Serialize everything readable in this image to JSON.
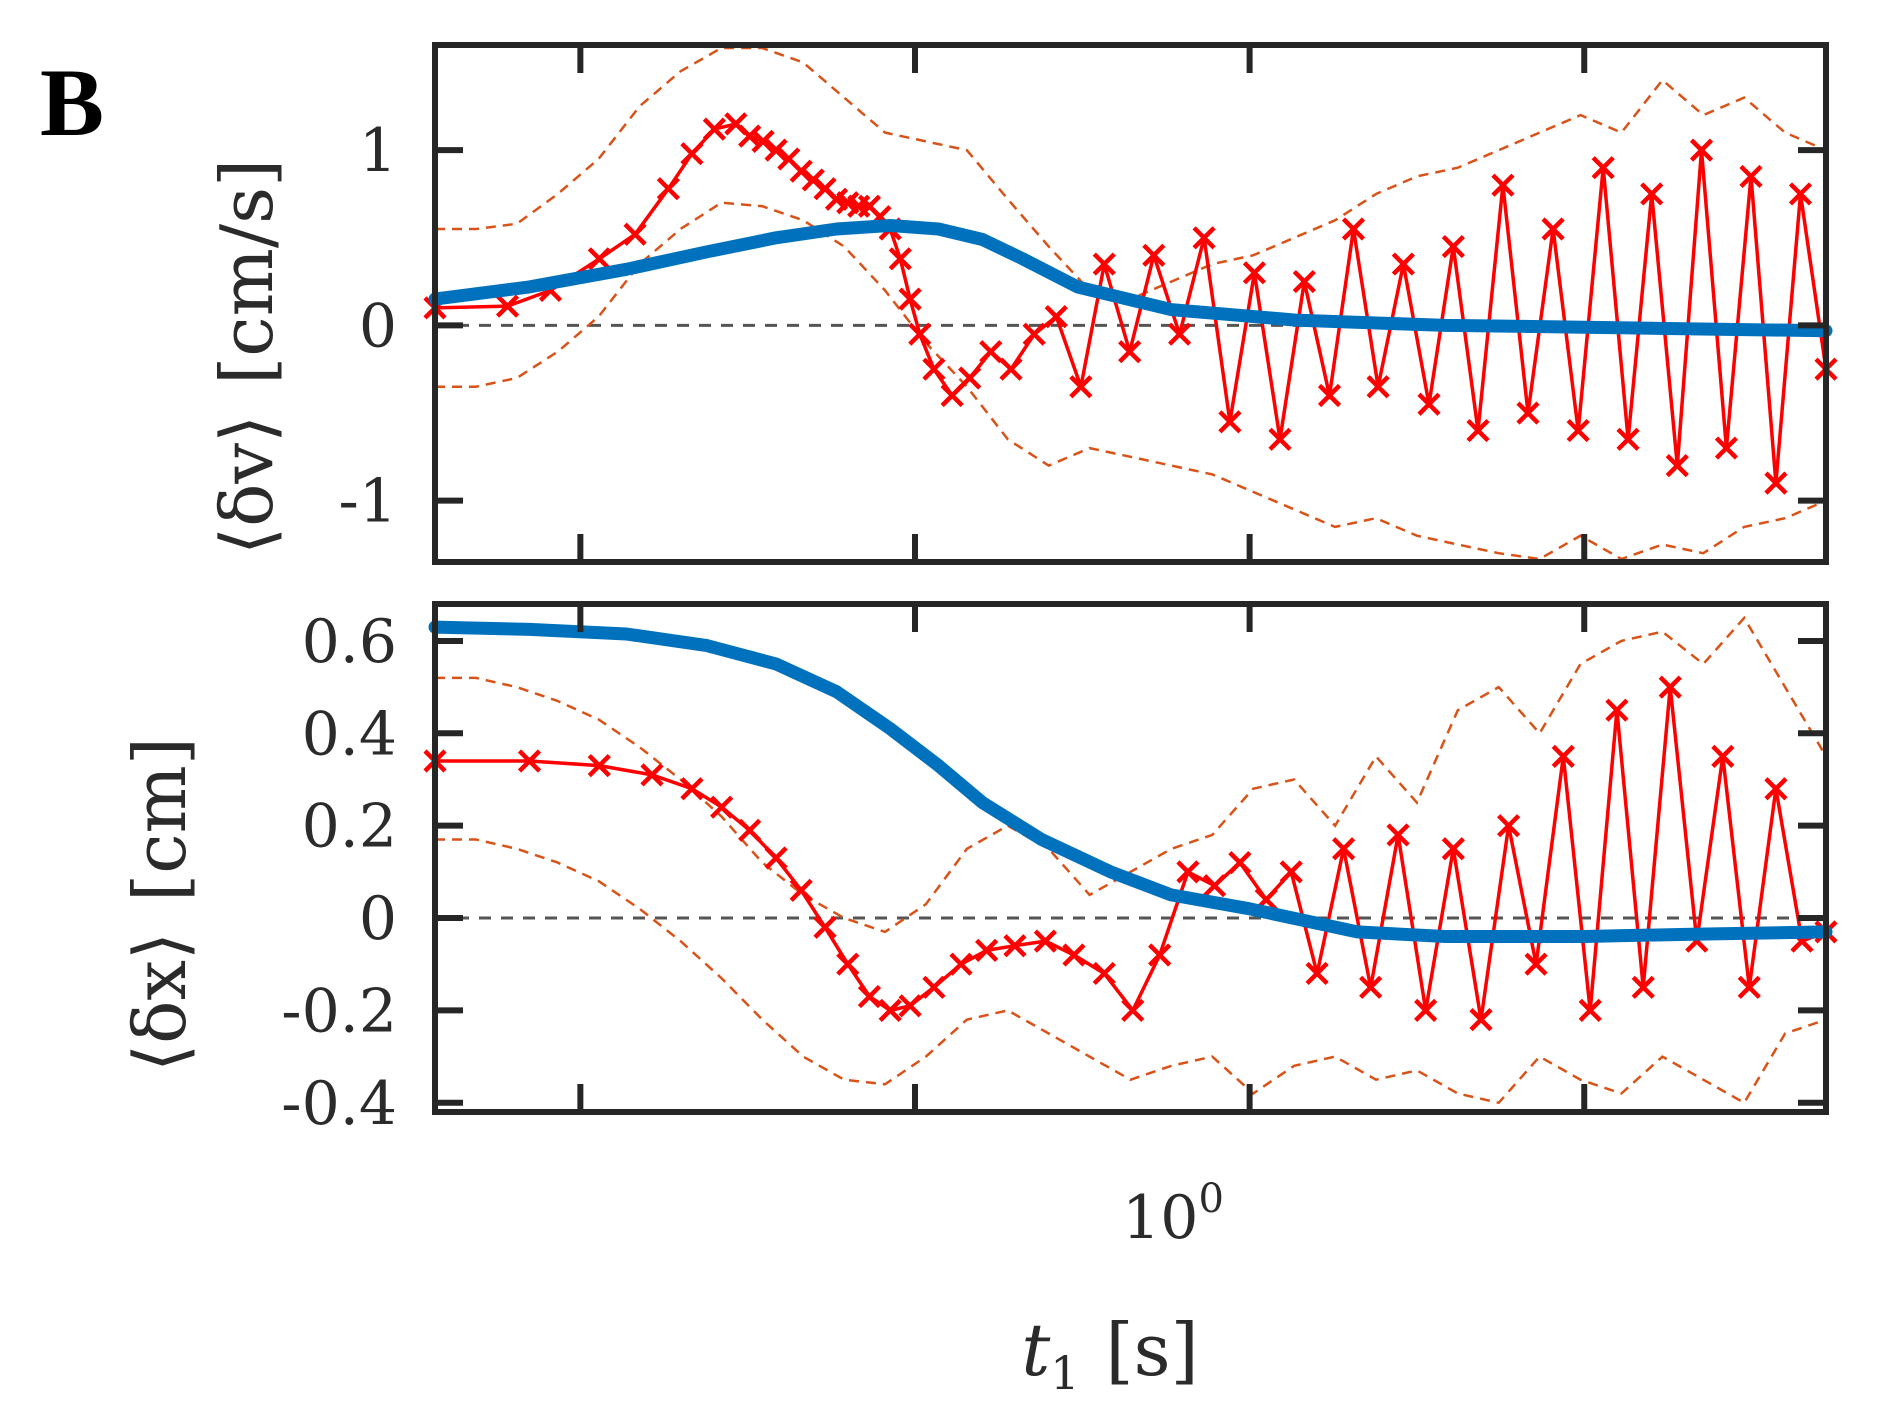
{
  "figure": {
    "panel_label": "B",
    "colors": {
      "model": "#0072BD",
      "data": "#ff0000",
      "ci": "#D95319",
      "zero": "#555555",
      "axes": "#262626"
    }
  },
  "chart_data": [
    {
      "type": "line",
      "panel": "top",
      "ylabel_main": "⟨δv⟩",
      "ylabel_unit": "[cm/s]",
      "xscale": "log",
      "xlim": [
        0.37,
        6.6
      ],
      "ylim": [
        -1.35,
        1.6
      ],
      "yticks": [
        -1,
        0,
        1
      ],
      "ytick_labels": [
        "-1",
        "0",
        "1"
      ],
      "xticks": [
        0.5,
        1,
        2,
        4
      ],
      "zero_line": 0,
      "model": {
        "x": [
          0.37,
          0.45,
          0.55,
          0.65,
          0.75,
          0.85,
          0.95,
          1.05,
          1.15,
          1.25,
          1.4,
          1.7,
          2.2,
          3.0,
          4.0,
          5.0,
          6.6
        ],
        "y": [
          0.15,
          0.22,
          0.32,
          0.42,
          0.5,
          0.55,
          0.57,
          0.55,
          0.49,
          0.38,
          0.22,
          0.09,
          0.03,
          0.0,
          -0.01,
          -0.02,
          -0.03
        ]
      },
      "data_x": [
        0.37,
        0.43,
        0.47,
        0.52,
        0.56,
        0.6,
        0.63,
        0.66,
        0.69,
        0.71,
        0.73,
        0.75,
        0.77,
        0.79,
        0.81,
        0.83,
        0.85,
        0.87,
        0.89,
        0.91,
        0.93,
        0.95,
        0.97,
        0.99,
        1.01,
        1.04,
        1.08,
        1.12,
        1.17,
        1.22,
        1.28,
        1.34,
        1.41,
        1.48,
        1.56,
        1.64,
        1.73,
        1.82,
        1.92,
        2.02,
        2.13,
        2.24,
        2.36,
        2.48,
        2.61,
        2.75,
        2.9,
        3.05,
        3.21,
        3.38,
        3.56,
        3.75,
        3.95,
        4.16,
        4.38,
        4.6,
        4.85,
        5.1,
        5.37,
        5.65,
        5.95,
        6.26,
        6.6
      ],
      "data_y": [
        0.1,
        0.11,
        0.2,
        0.38,
        0.52,
        0.78,
        0.98,
        1.12,
        1.15,
        1.08,
        1.05,
        1.0,
        0.95,
        0.88,
        0.83,
        0.78,
        0.72,
        0.7,
        0.68,
        0.68,
        0.62,
        0.55,
        0.38,
        0.15,
        -0.05,
        -0.25,
        -0.4,
        -0.3,
        -0.15,
        -0.25,
        -0.05,
        0.05,
        -0.35,
        0.35,
        -0.15,
        0.4,
        -0.05,
        0.5,
        -0.55,
        0.3,
        -0.65,
        0.25,
        -0.4,
        0.55,
        -0.35,
        0.35,
        -0.45,
        0.45,
        -0.6,
        0.8,
        -0.5,
        0.55,
        -0.6,
        0.9,
        -0.65,
        0.75,
        -0.8,
        1.0,
        -0.7,
        0.85,
        -0.9,
        0.75,
        -0.25
      ],
      "ci_upper": [
        0.55,
        0.55,
        0.58,
        0.75,
        0.95,
        1.25,
        1.45,
        1.6,
        1.62,
        1.5,
        1.3,
        1.1,
        1.05,
        1.0,
        0.72,
        0.45,
        0.2,
        0.15,
        0.25,
        0.35,
        0.4,
        0.5,
        0.6,
        0.75,
        0.85,
        0.9,
        1.0,
        1.1,
        1.2,
        1.1,
        1.4,
        1.2,
        1.3,
        1.1,
        1.0
      ],
      "ci_lower": [
        -0.35,
        -0.35,
        -0.3,
        -0.15,
        0.05,
        0.35,
        0.55,
        0.7,
        0.68,
        0.6,
        0.45,
        0.2,
        -0.1,
        -0.35,
        -0.65,
        -0.8,
        -0.7,
        -0.75,
        -0.8,
        -0.85,
        -0.95,
        -1.05,
        -1.15,
        -1.1,
        -1.2,
        -1.25,
        -1.3,
        -1.35,
        -1.2,
        -1.4,
        -1.25,
        -1.3,
        -1.15,
        -1.1,
        -1.0
      ]
    },
    {
      "type": "line",
      "panel": "bottom",
      "ylabel_main": "⟨δx⟩",
      "ylabel_unit": "[cm]",
      "xlabel_main": "t",
      "xlabel_sub": "1",
      "xlabel_unit": "[s]",
      "xscale": "log",
      "xlim": [
        0.37,
        6.6
      ],
      "ylim": [
        -0.42,
        0.68
      ],
      "yticks": [
        -0.4,
        -0.2,
        0,
        0.2,
        0.4,
        0.6
      ],
      "ytick_labels": [
        "-0.4",
        "-0.2",
        "0",
        "0.2",
        "0.4",
        "0.6"
      ],
      "xticks": [
        0.5,
        1,
        2,
        4
      ],
      "xtick_label_base": "10",
      "xtick_label_exp": "0",
      "zero_line": 0,
      "model": {
        "x": [
          0.37,
          0.45,
          0.55,
          0.65,
          0.75,
          0.85,
          0.95,
          1.05,
          1.15,
          1.3,
          1.5,
          1.7,
          2.0,
          2.5,
          3.0,
          4.0,
          5.0,
          6.6
        ],
        "y": [
          0.63,
          0.625,
          0.615,
          0.59,
          0.55,
          0.49,
          0.41,
          0.33,
          0.25,
          0.17,
          0.1,
          0.05,
          0.02,
          -0.03,
          -0.04,
          -0.04,
          -0.035,
          -0.03
        ]
      },
      "data_x": [
        0.37,
        0.45,
        0.52,
        0.58,
        0.63,
        0.67,
        0.71,
        0.75,
        0.79,
        0.83,
        0.87,
        0.91,
        0.95,
        0.99,
        1.04,
        1.1,
        1.16,
        1.23,
        1.31,
        1.39,
        1.48,
        1.57,
        1.66,
        1.76,
        1.86,
        1.96,
        2.07,
        2.18,
        2.3,
        2.43,
        2.57,
        2.72,
        2.88,
        3.05,
        3.23,
        3.42,
        3.62,
        3.83,
        4.05,
        4.28,
        4.52,
        4.78,
        5.05,
        5.33,
        5.63,
        5.95,
        6.28,
        6.6
      ],
      "data_y": [
        0.34,
        0.34,
        0.33,
        0.31,
        0.28,
        0.24,
        0.19,
        0.13,
        0.06,
        -0.02,
        -0.1,
        -0.17,
        -0.2,
        -0.19,
        -0.15,
        -0.1,
        -0.07,
        -0.06,
        -0.05,
        -0.08,
        -0.12,
        -0.2,
        -0.08,
        0.1,
        0.07,
        0.12,
        0.04,
        0.1,
        -0.12,
        0.15,
        -0.15,
        0.18,
        -0.2,
        0.15,
        -0.22,
        0.2,
        -0.1,
        0.35,
        -0.2,
        0.45,
        -0.15,
        0.5,
        -0.05,
        0.35,
        -0.15,
        0.28,
        -0.05,
        -0.03
      ],
      "ci_upper": [
        0.52,
        0.52,
        0.5,
        0.47,
        0.43,
        0.37,
        0.3,
        0.22,
        0.12,
        0.05,
        0.0,
        -0.03,
        0.03,
        0.15,
        0.2,
        0.15,
        0.05,
        0.1,
        0.15,
        0.18,
        0.28,
        0.3,
        0.2,
        0.35,
        0.25,
        0.45,
        0.5,
        0.4,
        0.55,
        0.6,
        0.62,
        0.55,
        0.65,
        0.5,
        0.35
      ],
      "ci_lower": [
        0.17,
        0.17,
        0.15,
        0.12,
        0.08,
        0.02,
        -0.05,
        -0.13,
        -0.22,
        -0.3,
        -0.35,
        -0.36,
        -0.3,
        -0.22,
        -0.2,
        -0.25,
        -0.3,
        -0.35,
        -0.32,
        -0.3,
        -0.38,
        -0.32,
        -0.3,
        -0.35,
        -0.33,
        -0.38,
        -0.4,
        -0.3,
        -0.35,
        -0.38,
        -0.3,
        -0.35,
        -0.4,
        -0.25,
        -0.22
      ]
    }
  ]
}
